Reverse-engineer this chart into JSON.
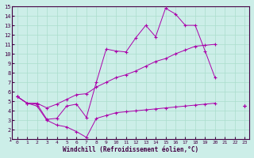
{
  "xlabel": "Windchill (Refroidissement éolien,°C)",
  "bg_color": "#cceee8",
  "grid_color": "#aaddcc",
  "line_color": "#aa00aa",
  "xlim": [
    -0.5,
    23.5
  ],
  "ylim": [
    1,
    15
  ],
  "xticks": [
    0,
    1,
    2,
    3,
    4,
    5,
    6,
    7,
    8,
    9,
    10,
    11,
    12,
    13,
    14,
    15,
    16,
    17,
    18,
    19,
    20,
    21,
    22,
    23
  ],
  "yticks": [
    1,
    2,
    3,
    4,
    5,
    6,
    7,
    8,
    9,
    10,
    11,
    12,
    13,
    14,
    15
  ],
  "line1_x": [
    0,
    1,
    2,
    3,
    4,
    5,
    6,
    7,
    8,
    9,
    10,
    11,
    12,
    13,
    14,
    15,
    16,
    17,
    18,
    19,
    20,
    21,
    22,
    23
  ],
  "line1_y": [
    5.5,
    4.8,
    4.7,
    3.1,
    3.2,
    4.5,
    4.7,
    3.3,
    7.0,
    10.5,
    10.3,
    10.2,
    11.7,
    13.0,
    11.8,
    14.8,
    14.2,
    13.0,
    13.0,
    10.3,
    7.5,
    null,
    null,
    4.5
  ],
  "line2_x": [
    0,
    1,
    2,
    3,
    4,
    5,
    6,
    7,
    8,
    9,
    10,
    11,
    12,
    13,
    14,
    15,
    16,
    17,
    18,
    19,
    20,
    21,
    22,
    23
  ],
  "line2_y": [
    5.5,
    4.8,
    4.8,
    4.3,
    4.7,
    5.2,
    5.7,
    5.8,
    6.5,
    7.0,
    7.5,
    7.8,
    8.2,
    8.7,
    9.2,
    9.5,
    10.0,
    10.4,
    10.8,
    10.9,
    11.0,
    null,
    null,
    4.5
  ],
  "line3_x": [
    0,
    1,
    2,
    3,
    4,
    5,
    6,
    7,
    8,
    9,
    10,
    11,
    12,
    13,
    14,
    15,
    16,
    17,
    18,
    19,
    20,
    21,
    22,
    23
  ],
  "line3_y": [
    5.5,
    4.8,
    4.5,
    3.0,
    2.5,
    2.3,
    1.8,
    1.2,
    3.2,
    3.5,
    3.8,
    3.9,
    4.0,
    4.1,
    4.2,
    4.3,
    4.4,
    4.5,
    4.6,
    4.7,
    4.8,
    null,
    null,
    4.5
  ]
}
